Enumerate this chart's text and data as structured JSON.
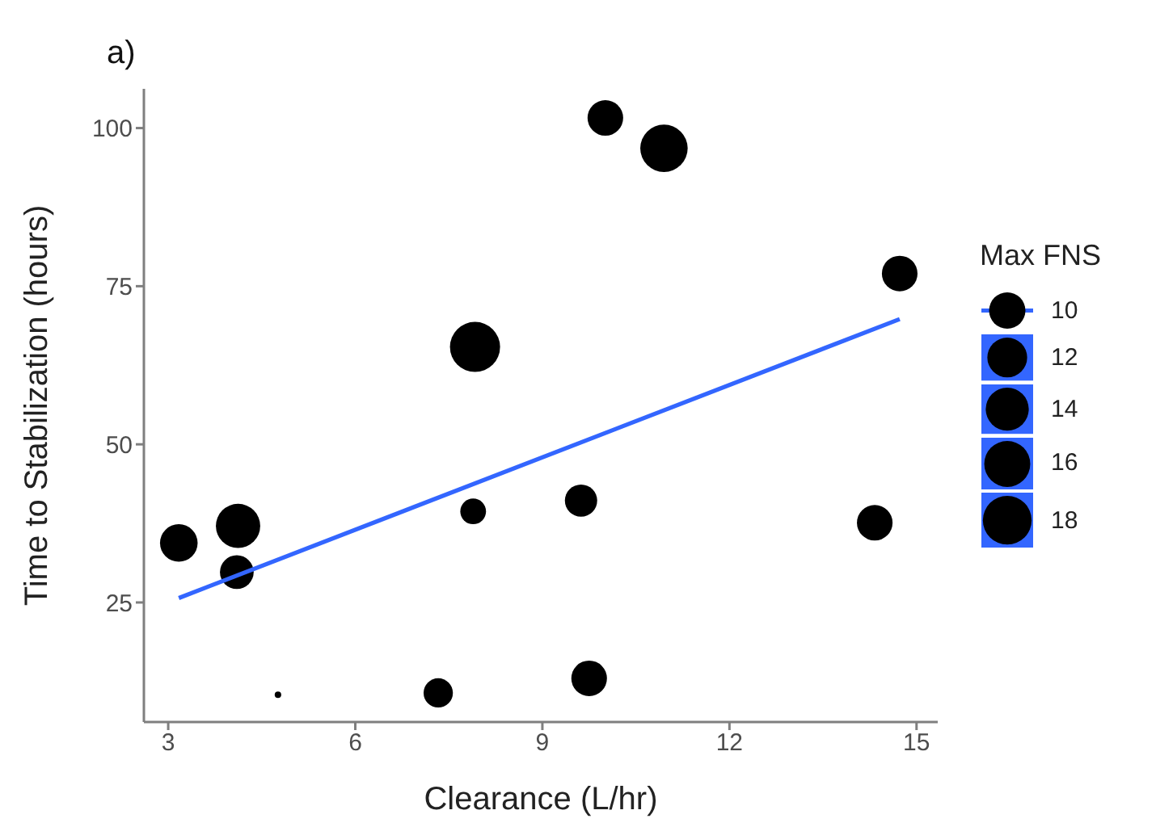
{
  "chart_data": {
    "type": "bubble",
    "title": "a)",
    "xlabel": "Clearance (L/hr)",
    "ylabel": "Time to Stabilization (hours)",
    "legend_title": "Max FNS",
    "grid": false,
    "xlim": [
      2.61,
      15.34
    ],
    "ylim": [
      6.1,
      106.2
    ],
    "xticks": [
      3,
      6,
      9,
      12,
      15
    ],
    "yticks": [
      25,
      50,
      75,
      100
    ],
    "size_legend": [
      10,
      12,
      14,
      16,
      18
    ],
    "series": [
      {
        "type": "bubble",
        "color": "#000000",
        "x": [
          3.17,
          4.12,
          4.1,
          4.76,
          7.33,
          7.92,
          7.89,
          10.01,
          10.95,
          9.62,
          9.75,
          14.33,
          14.73
        ],
        "values": [
          34.4,
          37.1,
          29.8,
          10.4,
          10.7,
          65.4,
          39.4,
          101.6,
          96.8,
          41.1,
          13.0,
          37.6,
          77.0
        ],
        "sizes": [
          10.7,
          14.85,
          8.6,
          0.32,
          6.5,
          19,
          5,
          9.6,
          17,
          7.9,
          9.6,
          9.6,
          9.6
        ]
      },
      {
        "type": "line",
        "color": "#3366ff",
        "x": [
          3.17,
          14.73
        ],
        "values": [
          25.7,
          69.8
        ]
      }
    ]
  }
}
